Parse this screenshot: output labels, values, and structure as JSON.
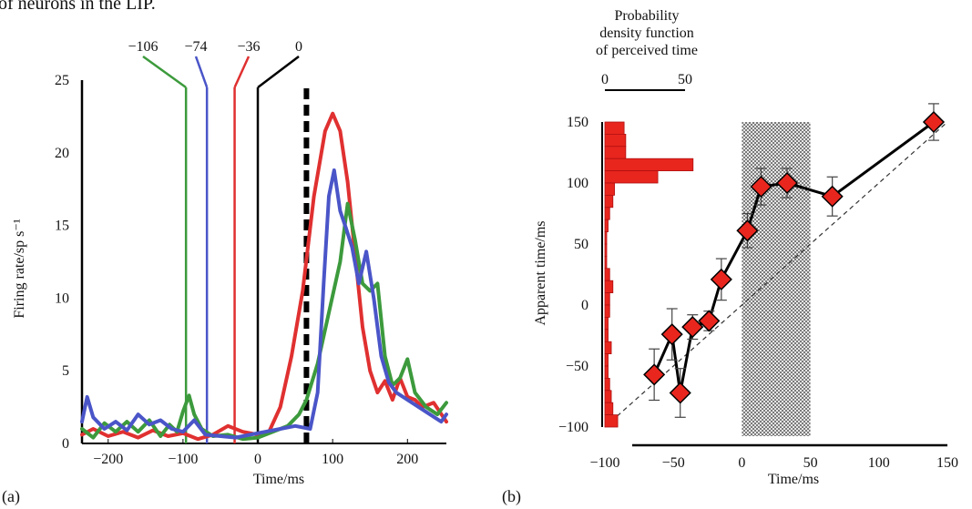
{
  "header_text": "of neurons in the LIP.",
  "chart_data": [
    {
      "panel_label": "(a)",
      "type": "line",
      "xlabel": "Time/ms",
      "ylabel": "Firing rate/sp s⁻¹",
      "xlim": [
        -235,
        252
      ],
      "ylim": [
        0,
        25
      ],
      "x_ticks": [
        -200,
        -100,
        0,
        100,
        200
      ],
      "x_tick_labels": [
        "−200",
        "−100",
        "0",
        "100",
        "200"
      ],
      "y_ticks": [
        0,
        5,
        10,
        15,
        20,
        25
      ],
      "y_tick_labels": [
        "0",
        "5",
        "10",
        "15",
        "20",
        "25"
      ],
      "stimulus_markers": [
        {
          "label": "−106",
          "x": -96,
          "color": "#3c9a3c"
        },
        {
          "label": "−74",
          "x": -68,
          "color": "#4a55c8"
        },
        {
          "label": "−36",
          "x": -31,
          "color": "#e03030"
        },
        {
          "label": "0",
          "x": 0,
          "color": "#000000"
        }
      ],
      "event_line_x": 65,
      "series": [
        {
          "color": "#e03030",
          "points": [
            [
              -235,
              0.6
            ],
            [
              -220,
              1.0
            ],
            [
              -200,
              0.5
            ],
            [
              -180,
              0.8
            ],
            [
              -160,
              0.4
            ],
            [
              -140,
              0.9
            ],
            [
              -120,
              0.5
            ],
            [
              -100,
              0.7
            ],
            [
              -80,
              0.3
            ],
            [
              -60,
              0.6
            ],
            [
              -40,
              1.2
            ],
            [
              -20,
              0.8
            ],
            [
              0,
              0.6
            ],
            [
              15,
              0.8
            ],
            [
              30,
              2.5
            ],
            [
              45,
              6
            ],
            [
              60,
              10.5
            ],
            [
              75,
              17
            ],
            [
              90,
              21.5
            ],
            [
              100,
              22.7
            ],
            [
              110,
              21.5
            ],
            [
              120,
              18
            ],
            [
              130,
              13
            ],
            [
              140,
              8
            ],
            [
              150,
              5
            ],
            [
              160,
              3.5
            ],
            [
              170,
              4.3
            ],
            [
              180,
              3.0
            ],
            [
              190,
              4.5
            ],
            [
              200,
              3.2
            ],
            [
              210,
              3.0
            ],
            [
              220,
              2.5
            ],
            [
              235,
              2.8
            ],
            [
              252,
              1.5
            ]
          ]
        },
        {
          "color": "#3c9a3c",
          "points": [
            [
              -235,
              1.0
            ],
            [
              -220,
              0.4
            ],
            [
              -205,
              1.4
            ],
            [
              -190,
              0.8
            ],
            [
              -175,
              1.5
            ],
            [
              -160,
              0.8
            ],
            [
              -145,
              1.6
            ],
            [
              -130,
              0.5
            ],
            [
              -118,
              1.3
            ],
            [
              -108,
              0.8
            ],
            [
              -100,
              2.2
            ],
            [
              -92,
              3.3
            ],
            [
              -85,
              2.0
            ],
            [
              -75,
              1.0
            ],
            [
              -60,
              0.5
            ],
            [
              -40,
              0.6
            ],
            [
              -20,
              0.3
            ],
            [
              0,
              0.4
            ],
            [
              20,
              0.8
            ],
            [
              40,
              1.2
            ],
            [
              55,
              2.0
            ],
            [
              65,
              3.0
            ],
            [
              80,
              5.5
            ],
            [
              95,
              9
            ],
            [
              110,
              12.5
            ],
            [
              120,
              16.5
            ],
            [
              130,
              14
            ],
            [
              140,
              11
            ],
            [
              150,
              10.5
            ],
            [
              160,
              11
            ],
            [
              170,
              6
            ],
            [
              180,
              4
            ],
            [
              190,
              4.5
            ],
            [
              200,
              5.8
            ],
            [
              210,
              3.5
            ],
            [
              225,
              2.5
            ],
            [
              240,
              2.0
            ],
            [
              252,
              2.8
            ]
          ]
        },
        {
          "color": "#4a55c8",
          "points": [
            [
              -235,
              1.5
            ],
            [
              -228,
              3.2
            ],
            [
              -220,
              1.8
            ],
            [
              -205,
              1.0
            ],
            [
              -190,
              1.5
            ],
            [
              -175,
              0.9
            ],
            [
              -160,
              2.0
            ],
            [
              -145,
              1.3
            ],
            [
              -130,
              1.6
            ],
            [
              -115,
              1.0
            ],
            [
              -100,
              0.8
            ],
            [
              -85,
              1.6
            ],
            [
              -70,
              0.6
            ],
            [
              -50,
              0.5
            ],
            [
              -30,
              0.4
            ],
            [
              -10,
              0.6
            ],
            [
              10,
              0.8
            ],
            [
              30,
              1.0
            ],
            [
              50,
              1.2
            ],
            [
              70,
              1.0
            ],
            [
              80,
              3.5
            ],
            [
              88,
              11
            ],
            [
              95,
              17
            ],
            [
              102,
              18.8
            ],
            [
              110,
              16
            ],
            [
              118,
              14.8
            ],
            [
              126,
              13.5
            ],
            [
              135,
              11
            ],
            [
              145,
              13.2
            ],
            [
              155,
              10
            ],
            [
              165,
              6
            ],
            [
              175,
              4.2
            ],
            [
              185,
              3.5
            ],
            [
              200,
              3.0
            ],
            [
              215,
              2.5
            ],
            [
              230,
              2.0
            ],
            [
              245,
              1.5
            ],
            [
              252,
              2.0
            ]
          ]
        }
      ]
    },
    {
      "panel_label": "(b)",
      "type": "scatter",
      "xlabel": "Time/ms",
      "ylabel": "Apparent time/ms",
      "xlim": [
        -100,
        150
      ],
      "ylim": [
        -100,
        150
      ],
      "x_ticks": [
        -100,
        -50,
        0,
        50,
        100,
        150
      ],
      "x_tick_labels": [
        "−100",
        "−50",
        "0",
        "50",
        "100",
        "150"
      ],
      "y_ticks": [
        -100,
        -50,
        0,
        50,
        100,
        150
      ],
      "y_tick_labels": [
        "−100",
        "−50",
        "0",
        "50",
        "100",
        "150"
      ],
      "shaded_region_x": [
        0,
        50
      ],
      "identity_line": true,
      "points": [
        {
          "x": -64,
          "y": -57,
          "err": 21
        },
        {
          "x": -51,
          "y": -24,
          "err": 21
        },
        {
          "x": -45,
          "y": -72,
          "err": 20
        },
        {
          "x": -36,
          "y": -18,
          "err": 10
        },
        {
          "x": -24,
          "y": -13,
          "err": 8
        },
        {
          "x": -15,
          "y": 21,
          "err": 17
        },
        {
          "x": 4,
          "y": 61,
          "err": 14
        },
        {
          "x": 14,
          "y": 97,
          "err": 15
        },
        {
          "x": 33,
          "y": 100,
          "err": 12
        },
        {
          "x": 66,
          "y": 89,
          "err": 16
        },
        {
          "x": 140,
          "y": 150,
          "err": 15
        }
      ],
      "histogram": {
        "title_lines": [
          "Probability",
          "density function",
          "of perceived time"
        ],
        "scale_ticks": [
          0,
          50
        ],
        "scale_tick_labels": [
          "0",
          "50"
        ],
        "bins": [
          {
            "y": 145,
            "value": 12
          },
          {
            "y": 135,
            "value": 13
          },
          {
            "y": 125,
            "value": 13
          },
          {
            "y": 115,
            "value": 55
          },
          {
            "y": 105,
            "value": 33
          },
          {
            "y": 95,
            "value": 6
          },
          {
            "y": 85,
            "value": 5
          },
          {
            "y": 75,
            "value": 3
          },
          {
            "y": 65,
            "value": 2
          },
          {
            "y": 55,
            "value": 1
          },
          {
            "y": 45,
            "value": 1
          },
          {
            "y": 35,
            "value": 1
          },
          {
            "y": 25,
            "value": 3
          },
          {
            "y": 15,
            "value": 5
          },
          {
            "y": 5,
            "value": 3
          },
          {
            "y": -5,
            "value": 3
          },
          {
            "y": -15,
            "value": 2
          },
          {
            "y": -25,
            "value": 2
          },
          {
            "y": -35,
            "value": 4
          },
          {
            "y": -45,
            "value": 2
          },
          {
            "y": -55,
            "value": 2
          },
          {
            "y": -65,
            "value": 3
          },
          {
            "y": -75,
            "value": 4
          },
          {
            "y": -85,
            "value": 5
          },
          {
            "y": -95,
            "value": 8
          }
        ]
      }
    }
  ]
}
